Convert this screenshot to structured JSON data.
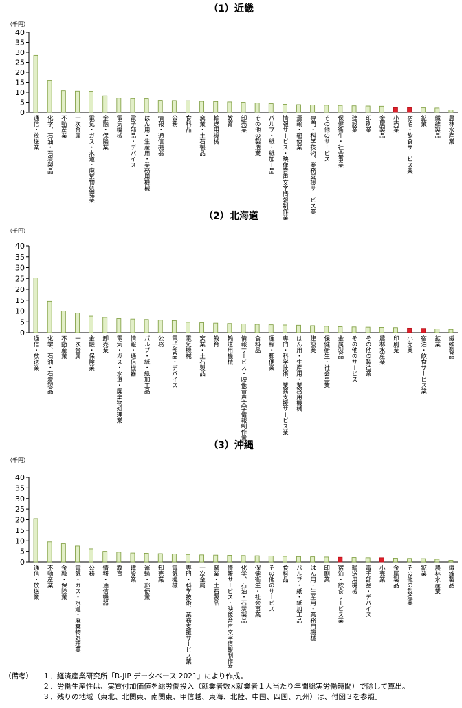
{
  "chart_data": [
    {
      "type": "bar",
      "title": "（1）近畿",
      "unit_label": "（千円）",
      "ylim": [
        0,
        40
      ],
      "yticks": [
        "0",
        "5",
        "10",
        "15",
        "20",
        "25",
        "30",
        "35",
        "40"
      ],
      "categories": [
        "通信・放送業",
        "化学、石油・石炭製品",
        "不動産業",
        "一次金属",
        "電気・ガス・水道・廃棄物処理業",
        "金融・保険業",
        "電気機械",
        "電子部品・デバイス",
        "はん用・生産用・業務用機械",
        "情報・通信機器",
        "公務",
        "食料品",
        "窯業・土石製品",
        "輸送用機械",
        "教育",
        "卸売業",
        "その他の製造業",
        "パルプ・紙・紙加工品",
        "情報サービス・映像音声文字情報制作業",
        "運輸・郵便業",
        "専門・科学技術、業務支援サービス業",
        "その他のサービス",
        "保健衛生・社会事業",
        "建設業",
        "印刷業",
        "金属製品",
        "小売業",
        "宿泊・飲食サービス業",
        "鉱業",
        "繊維製品",
        "農林水産業"
      ],
      "values": [
        28.5,
        16,
        10.8,
        10.6,
        10.5,
        8.2,
        7,
        6.8,
        6.7,
        6,
        5.9,
        5.8,
        5.5,
        5.4,
        5.2,
        5,
        4.6,
        4.3,
        4,
        3.8,
        3.6,
        3.5,
        3.4,
        3.2,
        3.1,
        3,
        2.3,
        2.3,
        2.2,
        2.1,
        1.2
      ],
      "highlight": [
        "小売業",
        "宿泊・飲食サービス業"
      ]
    },
    {
      "type": "bar",
      "title": "（2）北海道",
      "unit_label": "（千円）",
      "ylim": [
        0,
        40
      ],
      "yticks": [
        "0",
        "5",
        "10",
        "15",
        "20",
        "25",
        "30",
        "35",
        "40"
      ],
      "categories": [
        "通信・放送業",
        "化学、石油・石炭製品",
        "不動産業",
        "一次金属",
        "金融・保険業",
        "卸売業",
        "電気・ガス・水道・廃棄物処理業",
        "情報・通信機器",
        "パルプ・紙・紙加工品",
        "公務",
        "電子部品・デバイス",
        "電気機械",
        "窯業・土石製品",
        "教育",
        "輸送用機械",
        "情報サービス・映像音声文字情報制作業",
        "食料品",
        "運輸・郵便業",
        "専門・科学技術、業務支援サービス業",
        "はん用・生産用・業務用機械",
        "建設業",
        "保健衛生・社会事業",
        "金属製品",
        "その他のサービス",
        "その他の製造業",
        "農林水産業",
        "印刷業",
        "小売業",
        "宿泊・飲食サービス業",
        "鉱業",
        "繊維製品"
      ],
      "values": [
        25.2,
        14.5,
        10,
        9,
        7.6,
        7,
        6.5,
        6.3,
        6.1,
        5.8,
        5.6,
        4.8,
        4.6,
        4.4,
        4.2,
        4,
        3.8,
        3.6,
        3.5,
        3.4,
        3.2,
        2.9,
        2.7,
        2.6,
        2.5,
        2.4,
        2.3,
        2.1,
        2,
        1.7,
        1.5
      ],
      "highlight": [
        "小売業",
        "宿泊・飲食サービス業"
      ]
    },
    {
      "type": "bar",
      "title": "（3）沖縄",
      "unit_label": "（千円）",
      "ylim": [
        0,
        40
      ],
      "yticks": [
        "0",
        "5",
        "10",
        "15",
        "20",
        "25",
        "30",
        "35",
        "40"
      ],
      "categories": [
        "通信・放送業",
        "不動産業",
        "金融・保険業",
        "電気・ガス・水道・廃棄物処理業",
        "公務",
        "情報・通信機器",
        "教育",
        "建設業",
        "運輸・郵便業",
        "卸売業",
        "電気機械",
        "専門・科学技術、業務支援サービス業",
        "一次金属",
        "窯業・土石製品",
        "情報サービス・映像音声文字情報制作業",
        "化学、石油・石炭製品",
        "保健衛生・社会事業",
        "その他のサービス",
        "食料品",
        "パルプ・紙・紙加工品",
        "はん用・生産用・業務用機械",
        "印刷業",
        "宿泊・飲食サービス業",
        "輸送用機械",
        "電子部品・デバイス",
        "小売業",
        "金属製品",
        "その他の製造業",
        "鉱業",
        "農林水産業",
        "繊維製品"
      ],
      "values": [
        20.5,
        9.5,
        8.6,
        7.5,
        6.2,
        5,
        4.6,
        4.2,
        4.1,
        3.9,
        3.7,
        3.5,
        3.3,
        3.2,
        3.1,
        3,
        2.9,
        2.8,
        2.6,
        2.5,
        2.4,
        2.3,
        2.2,
        2.1,
        2,
        2,
        1.8,
        1.7,
        1.6,
        1.3,
        0.8
      ],
      "highlight": [
        "小売業",
        "宿泊・飲食サービス業"
      ]
    }
  ],
  "colors": {
    "bar_fill": "#e2efc7",
    "bar_stroke": "#7a9a3a",
    "highlight_fill": "#e0202a",
    "highlight_stroke": "#b5121b",
    "axis": "#000000"
  },
  "notes": {
    "head": "（備考）",
    "lines": [
      "１．経済産業研究所「R-JIP データベース 2021」により作成。",
      "２．労働生産性は、実質付加価値を総労働投入（就業者数×就業者１人当たり年間総実労働時間）で除して算出。",
      "３．残りの地域（東北、北関東、南関東、甲信越、東海、北陸、中国、四国、九州）は、付図３を参照。"
    ]
  }
}
